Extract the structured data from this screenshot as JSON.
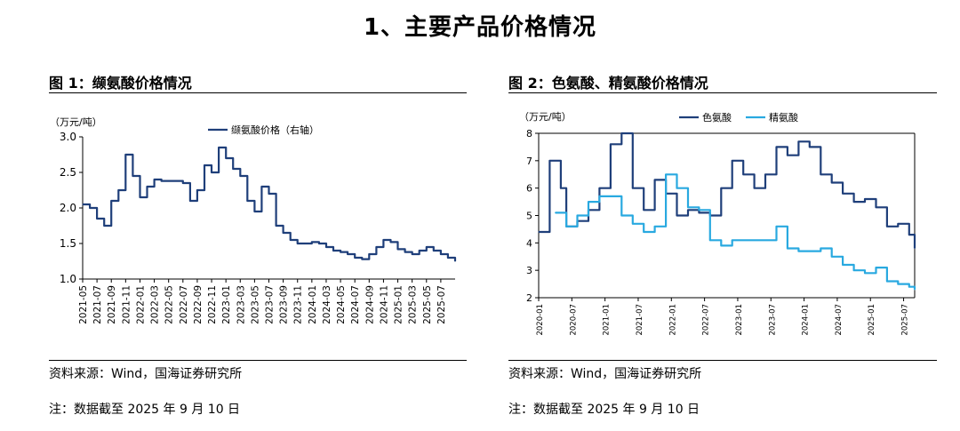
{
  "page": {
    "title": "1、主要产品价格情况"
  },
  "figures": [
    {
      "heading": "图 1：缬氨酸价格情况",
      "source": "资料来源：Wind，国海证券研究所",
      "note": "注：数据截至 2025 年 9 月 10 日"
    },
    {
      "heading": "图 2：色氨酸、精氨酸价格情况",
      "source": "资料来源：Wind，国海证券研究所",
      "note": "注：数据截至 2025 年 9 月 10 日"
    }
  ],
  "chart_data": [
    {
      "type": "line",
      "unit_label": "（万元/吨）",
      "ylim": [
        1.0,
        3.0
      ],
      "yticks": [
        "1.0",
        "1.5",
        "2.0",
        "2.5",
        "3.0"
      ],
      "xlim": [
        "2021-05",
        "2025-09"
      ],
      "xticks": [
        "2021-05",
        "2021-07",
        "2021-09",
        "2021-11",
        "2022-01",
        "2022-03",
        "2022-05",
        "2022-07",
        "2022-09",
        "2022-11",
        "2023-01",
        "2023-03",
        "2023-05",
        "2023-07",
        "2023-09",
        "2023-11",
        "2024-01",
        "2024-03",
        "2024-05",
        "2024-07",
        "2024-09",
        "2024-11",
        "2025-01",
        "2025-03",
        "2025-05",
        "2025-07"
      ],
      "grid": false,
      "legend_position": "top-center",
      "colors": [
        "#1f3f7a"
      ],
      "series": [
        {
          "name": "缬氨酸价格（右轴）",
          "color": "#1f3f7a",
          "points": [
            [
              "2021-05",
              2.05
            ],
            [
              "2021-06",
              2.0
            ],
            [
              "2021-07",
              1.85
            ],
            [
              "2021-08",
              1.75
            ],
            [
              "2021-09",
              2.1
            ],
            [
              "2021-10",
              2.25
            ],
            [
              "2021-11",
              2.75
            ],
            [
              "2021-12",
              2.45
            ],
            [
              "2022-01",
              2.15
            ],
            [
              "2022-02",
              2.3
            ],
            [
              "2022-03",
              2.4
            ],
            [
              "2022-04",
              2.38
            ],
            [
              "2022-05",
              2.38
            ],
            [
              "2022-06",
              2.38
            ],
            [
              "2022-07",
              2.35
            ],
            [
              "2022-08",
              2.1
            ],
            [
              "2022-09",
              2.25
            ],
            [
              "2022-10",
              2.6
            ],
            [
              "2022-11",
              2.5
            ],
            [
              "2022-12",
              2.85
            ],
            [
              "2023-01",
              2.7
            ],
            [
              "2023-02",
              2.55
            ],
            [
              "2023-03",
              2.45
            ],
            [
              "2023-04",
              2.1
            ],
            [
              "2023-05",
              1.95
            ],
            [
              "2023-06",
              2.3
            ],
            [
              "2023-07",
              2.2
            ],
            [
              "2023-08",
              1.75
            ],
            [
              "2023-09",
              1.65
            ],
            [
              "2023-10",
              1.55
            ],
            [
              "2023-11",
              1.5
            ],
            [
              "2023-12",
              1.5
            ],
            [
              "2024-01",
              1.52
            ],
            [
              "2024-02",
              1.5
            ],
            [
              "2024-03",
              1.45
            ],
            [
              "2024-04",
              1.4
            ],
            [
              "2024-05",
              1.38
            ],
            [
              "2024-06",
              1.35
            ],
            [
              "2024-07",
              1.3
            ],
            [
              "2024-08",
              1.28
            ],
            [
              "2024-09",
              1.35
            ],
            [
              "2024-10",
              1.45
            ],
            [
              "2024-11",
              1.55
            ],
            [
              "2024-12",
              1.52
            ],
            [
              "2025-01",
              1.42
            ],
            [
              "2025-02",
              1.38
            ],
            [
              "2025-03",
              1.35
            ],
            [
              "2025-04",
              1.4
            ],
            [
              "2025-05",
              1.45
            ],
            [
              "2025-06",
              1.4
            ],
            [
              "2025-07",
              1.35
            ],
            [
              "2025-08",
              1.3
            ],
            [
              "2025-09",
              1.25
            ]
          ]
        }
      ]
    },
    {
      "type": "line",
      "unit_label": "（万元/吨）",
      "ylim": [
        2,
        8
      ],
      "yticks": [
        "2",
        "3",
        "4",
        "5",
        "6",
        "7",
        "8"
      ],
      "xlim": [
        "2020-01",
        "2025-09"
      ],
      "xticks": [
        "2020-01",
        "2020-07",
        "2021-01",
        "2021-07",
        "2022-01",
        "2022-07",
        "2023-01",
        "2023-07",
        "2024-01",
        "2024-07",
        "2025-01",
        "2025-07"
      ],
      "grid": false,
      "legend_position": "top-center",
      "colors": [
        "#1f3f7a",
        "#29a9e0"
      ],
      "series": [
        {
          "name": "色氨酸",
          "color": "#1f3f7a",
          "points": [
            [
              "2020-01",
              4.4
            ],
            [
              "2020-03",
              7.0
            ],
            [
              "2020-05",
              6.0
            ],
            [
              "2020-06",
              4.6
            ],
            [
              "2020-08",
              4.8
            ],
            [
              "2020-10",
              5.2
            ],
            [
              "2020-12",
              6.0
            ],
            [
              "2021-02",
              7.6
            ],
            [
              "2021-04",
              8.0
            ],
            [
              "2021-06",
              6.0
            ],
            [
              "2021-08",
              5.2
            ],
            [
              "2021-10",
              6.3
            ],
            [
              "2021-12",
              5.8
            ],
            [
              "2022-02",
              5.0
            ],
            [
              "2022-04",
              5.2
            ],
            [
              "2022-06",
              5.1
            ],
            [
              "2022-08",
              5.0
            ],
            [
              "2022-10",
              6.0
            ],
            [
              "2022-12",
              7.0
            ],
            [
              "2023-02",
              6.5
            ],
            [
              "2023-04",
              6.0
            ],
            [
              "2023-06",
              6.5
            ],
            [
              "2023-08",
              7.5
            ],
            [
              "2023-10",
              7.2
            ],
            [
              "2023-12",
              7.7
            ],
            [
              "2024-02",
              7.5
            ],
            [
              "2024-04",
              6.5
            ],
            [
              "2024-06",
              6.2
            ],
            [
              "2024-08",
              5.8
            ],
            [
              "2024-10",
              5.5
            ],
            [
              "2024-12",
              5.6
            ],
            [
              "2025-02",
              5.3
            ],
            [
              "2025-04",
              4.6
            ],
            [
              "2025-06",
              4.7
            ],
            [
              "2025-08",
              4.3
            ],
            [
              "2025-09",
              3.8
            ]
          ]
        },
        {
          "name": "精氨酸",
          "color": "#29a9e0",
          "points": [
            [
              "2020-04",
              5.1
            ],
            [
              "2020-06",
              4.6
            ],
            [
              "2020-08",
              5.0
            ],
            [
              "2020-10",
              5.5
            ],
            [
              "2020-12",
              5.7
            ],
            [
              "2021-02",
              5.7
            ],
            [
              "2021-04",
              5.0
            ],
            [
              "2021-06",
              4.7
            ],
            [
              "2021-08",
              4.4
            ],
            [
              "2021-10",
              4.6
            ],
            [
              "2021-12",
              6.5
            ],
            [
              "2022-02",
              6.0
            ],
            [
              "2022-04",
              5.3
            ],
            [
              "2022-06",
              5.2
            ],
            [
              "2022-08",
              4.1
            ],
            [
              "2022-10",
              3.9
            ],
            [
              "2022-12",
              4.1
            ],
            [
              "2023-02",
              4.1
            ],
            [
              "2023-04",
              4.1
            ],
            [
              "2023-06",
              4.1
            ],
            [
              "2023-08",
              4.6
            ],
            [
              "2023-10",
              3.8
            ],
            [
              "2023-12",
              3.7
            ],
            [
              "2024-02",
              3.7
            ],
            [
              "2024-04",
              3.8
            ],
            [
              "2024-06",
              3.5
            ],
            [
              "2024-08",
              3.2
            ],
            [
              "2024-10",
              3.0
            ],
            [
              "2024-12",
              2.9
            ],
            [
              "2025-02",
              3.1
            ],
            [
              "2025-04",
              2.6
            ],
            [
              "2025-06",
              2.5
            ],
            [
              "2025-08",
              2.4
            ],
            [
              "2025-09",
              2.3
            ]
          ]
        }
      ]
    }
  ]
}
